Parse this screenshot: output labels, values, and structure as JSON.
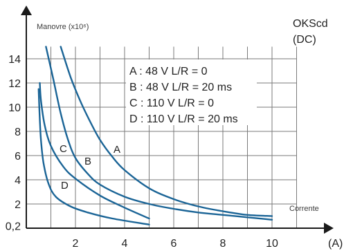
{
  "chart_data": {
    "type": "line",
    "title": "OKScd",
    "subtitle": "(DC)",
    "ylabel": "Manovre (x10⁶)",
    "xlabel": "Corrente",
    "x_unit": "(A)",
    "xlim": [
      0,
      11
    ],
    "ylim": [
      0.2,
      15
    ],
    "x_ticks": [
      "2",
      "4",
      "6",
      "8",
      "10"
    ],
    "y_ticks": [
      "0,2",
      "2",
      "4",
      "6",
      "8",
      "10",
      "12",
      "14"
    ],
    "grid": true,
    "legend": [
      "A : 48 V L/R = 0",
      "B : 48 V L/R = 20 ms",
      "C : 110 V L/R = 0",
      "D : 110 V L/R = 20 ms"
    ],
    "series": [
      {
        "name": "A",
        "x": [
          1.4,
          1.8,
          2.2,
          2.6,
          3.0,
          3.5,
          4.0,
          5.0,
          6.0,
          7.0,
          8.0,
          9.0,
          10.0
        ],
        "y": [
          15.0,
          12.5,
          10.5,
          8.8,
          7.3,
          5.9,
          4.8,
          3.3,
          2.4,
          1.8,
          1.4,
          1.1,
          1.0
        ]
      },
      {
        "name": "B",
        "x": [
          0.8,
          1.1,
          1.4,
          1.7,
          2.0,
          2.5,
          3.0,
          4.0,
          5.0,
          6.0,
          7.0,
          8.0,
          9.0,
          10.0
        ],
        "y": [
          15.0,
          12.3,
          9.5,
          7.3,
          5.8,
          4.5,
          3.6,
          2.6,
          2.0,
          1.6,
          1.3,
          1.1,
          0.9,
          0.7
        ]
      },
      {
        "name": "C",
        "x": [
          0.55,
          0.6,
          0.75,
          1.0,
          1.5,
          2.0,
          3.0,
          4.0,
          5.0
        ],
        "y": [
          12.0,
          10.5,
          8.5,
          6.8,
          5.1,
          4.1,
          2.7,
          1.7,
          0.8
        ]
      },
      {
        "name": "D",
        "x": [
          0.5,
          0.55,
          0.6,
          0.7,
          0.9,
          1.2,
          1.8,
          2.5,
          3.5,
          5.0
        ],
        "y": [
          11.5,
          9.0,
          7.2,
          5.4,
          3.7,
          2.6,
          1.8,
          1.3,
          0.8,
          0.3
        ]
      }
    ],
    "curve_labels": [
      "A",
      "B",
      "C",
      "D"
    ],
    "colors": {
      "curve": "#1a6496",
      "grid": "#7a7a7a",
      "axis": "#1a1a1a"
    }
  }
}
